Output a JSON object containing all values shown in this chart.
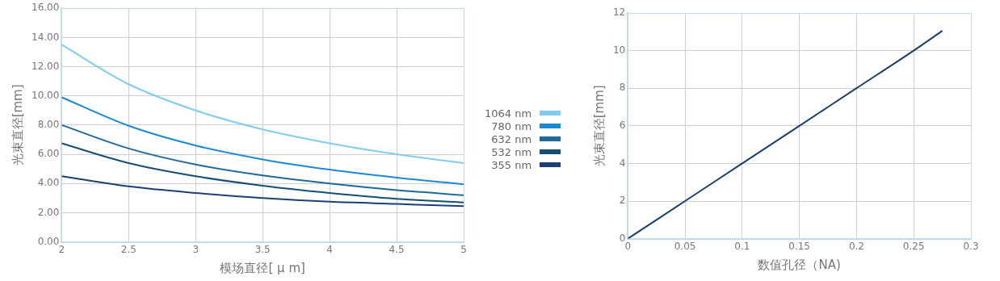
{
  "chart_data": [
    {
      "type": "line",
      "xlabel": "模场直径[ μ m]",
      "ylabel": "光束直径[mm]",
      "x": [
        2,
        2.5,
        3,
        3.5,
        4,
        4.5,
        5
      ],
      "series": [
        {
          "name": "1064 nm",
          "color": "#7fcdf2",
          "values": [
            13.5,
            10.8,
            9.0,
            7.7,
            6.75,
            6.0,
            5.4
          ]
        },
        {
          "name": "780 nm",
          "color": "#1a8ad4",
          "values": [
            9.9,
            7.95,
            6.6,
            5.65,
            4.95,
            4.4,
            3.95
          ]
        },
        {
          "name": "632 nm",
          "color": "#1f6a9a",
          "values": [
            8.0,
            6.4,
            5.3,
            4.55,
            4.0,
            3.55,
            3.2
          ]
        },
        {
          "name": "532 nm",
          "color": "#154f74",
          "values": [
            6.75,
            5.4,
            4.5,
            3.85,
            3.35,
            2.95,
            2.7
          ]
        },
        {
          "name": "355 nm",
          "color": "#1c3f74",
          "values": [
            4.5,
            3.8,
            3.35,
            3.0,
            2.75,
            2.6,
            2.45
          ]
        }
      ],
      "xlim": [
        2,
        5
      ],
      "xticks": [
        2,
        2.5,
        3,
        3.5,
        4,
        4.5,
        5
      ],
      "ylim": [
        0,
        16
      ],
      "yticks": [
        {
          "value": 0,
          "label": "0.00"
        },
        {
          "value": 2,
          "label": "2.00"
        },
        {
          "value": 4,
          "label": "4.00"
        },
        {
          "value": 6,
          "label": "6.00"
        },
        {
          "value": 8,
          "label": "8.00"
        },
        {
          "value": 10,
          "label": "10.00"
        },
        {
          "value": 12,
          "label": "12.00"
        },
        {
          "value": 14,
          "label": "14.00"
        },
        {
          "value": 16,
          "label": "16.00"
        }
      ],
      "grid": true,
      "legend": "right",
      "marker": "none",
      "line_style": "solid"
    },
    {
      "type": "line",
      "xlabel": "数值孔径（NA)",
      "ylabel": "光束直径[mm]",
      "x": [
        0,
        0.05,
        0.1,
        0.15,
        0.2,
        0.25,
        0.275
      ],
      "series": [
        {
          "color": "#1a3f6e",
          "values": [
            0,
            2,
            4,
            6,
            8,
            10,
            11.05
          ]
        }
      ],
      "xlim": [
        0,
        0.3
      ],
      "xticks": [
        0,
        0.05,
        0.1,
        0.15,
        0.2,
        0.25,
        0.3
      ],
      "ylim": [
        0,
        12
      ],
      "yticks": [
        0,
        2,
        4,
        6,
        8,
        10,
        12
      ],
      "grid": true,
      "marker": "none",
      "line_style": "solid"
    }
  ]
}
